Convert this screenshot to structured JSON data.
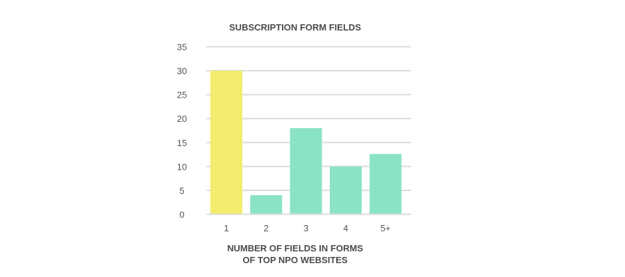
{
  "chart_data": {
    "type": "bar",
    "title": "SUBSCRIPTION FORM FIELDS",
    "xlabel": [
      "NUMBER OF FIELDS IN FORMS",
      "OF TOP NPO WEBSITES"
    ],
    "ylabel": "",
    "categories": [
      "1",
      "2",
      "3",
      "4",
      "5+"
    ],
    "values": [
      30,
      4,
      18,
      10,
      12.6
    ],
    "ylim": [
      0,
      35
    ],
    "yticks": [
      "0",
      "5",
      "10",
      "15",
      "20",
      "25",
      "30",
      "35"
    ],
    "grid": true,
    "colors": {
      "highlight": "#f3ec6e",
      "default": "#8be3c6",
      "grid": "#dcdcdc"
    },
    "highlight_category": "1"
  }
}
